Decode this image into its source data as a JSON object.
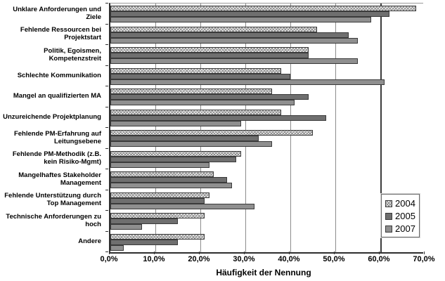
{
  "chart_data": {
    "type": "bar",
    "orientation": "horizontal",
    "xlabel": "Häufigkeit der Nennung",
    "xlim": [
      0,
      70
    ],
    "x_tick_values": [
      0,
      10,
      20,
      30,
      40,
      50,
      60,
      70
    ],
    "x_tick_labels": [
      "0,0%",
      "10,0%",
      "20,0%",
      "30,0%",
      "40,0%",
      "50,0%",
      "60,0%",
      "70,0%"
    ],
    "emphasized_gridline": 60,
    "grid": true,
    "categories": [
      "Unklare Anforderungen und Ziele",
      "Fehlende Ressourcen bei Projektstart",
      "Politik, Egoismen, Kompetenzstreit",
      "Schlechte Kommunikation",
      "Mangel an qualifizierten MA",
      "Unzureichende Projektplanung",
      "Fehlende PM-Erfahrung auf Leitungsebene",
      "Fehlende PM-Methodik (z.B. kein Risiko-Mgmt)",
      "Mangelhaftes Stakeholder Management",
      "Fehlende Unterstützung durch Top Management",
      "Technische Anforderungen zu hoch",
      "Andere"
    ],
    "series": [
      {
        "name": "2004",
        "style": "hatched",
        "color": "#ededed",
        "values": [
          68,
          46,
          44,
          38,
          36,
          38,
          45,
          29,
          23,
          22,
          21,
          21
        ]
      },
      {
        "name": "2005",
        "style": "solid",
        "color": "#6f6f6f",
        "values": [
          62,
          53,
          44,
          40,
          44,
          48,
          33,
          28,
          26,
          21,
          15,
          15
        ]
      },
      {
        "name": "2007",
        "style": "solid",
        "color": "#8f8f8f",
        "values": [
          58,
          55,
          55,
          61,
          41,
          29,
          36,
          22,
          27,
          32,
          7,
          3
        ]
      }
    ],
    "legend": {
      "position": "bottom-right",
      "entries": [
        "2004",
        "2005",
        "2007"
      ]
    }
  },
  "colors": {
    "bar_border": "#3a3a3a",
    "gridline": "#8c8c8c",
    "gridline_major": "#3c3c3c",
    "axis": "#2f2f2f",
    "background": "#ffffff"
  }
}
